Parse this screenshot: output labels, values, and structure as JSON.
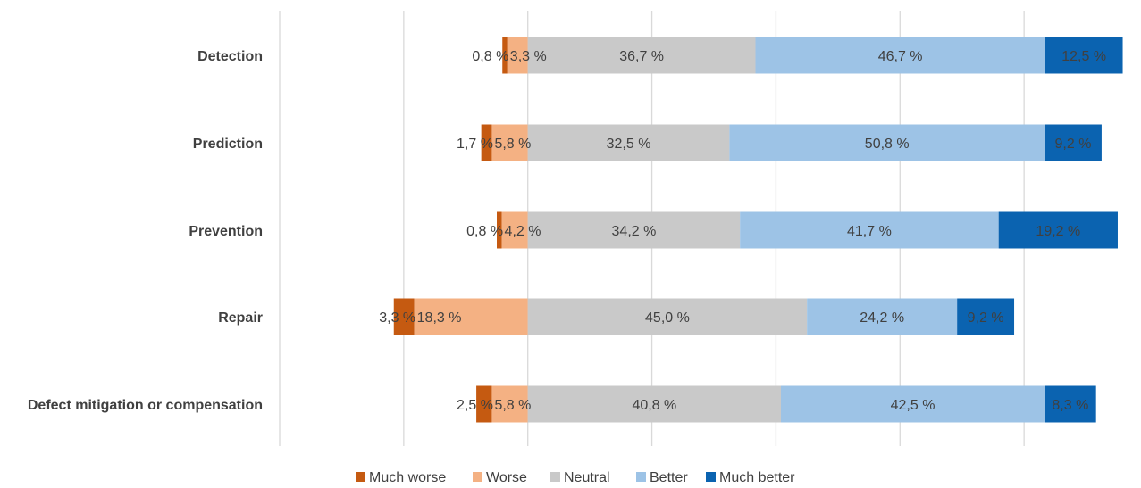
{
  "chart_data": {
    "type": "bar",
    "orientation": "horizontal",
    "stacked": "diverging",
    "categories": [
      "Detection",
      "Prediction",
      "Prevention",
      "Repair",
      "Defect mitigation or compensation"
    ],
    "series": [
      {
        "name": "Much worse",
        "color": "#C55A11",
        "values": [
          0.8,
          1.7,
          0.8,
          3.3,
          2.5
        ]
      },
      {
        "name": "Worse",
        "color": "#F4B183",
        "values": [
          3.3,
          5.8,
          4.2,
          18.3,
          5.8
        ]
      },
      {
        "name": "Neutral",
        "color": "#C9C9C9",
        "values": [
          36.7,
          32.5,
          34.2,
          45.0,
          40.8
        ]
      },
      {
        "name": "Better",
        "color": "#9DC3E6",
        "values": [
          46.7,
          50.8,
          41.7,
          24.2,
          42.5
        ]
      },
      {
        "name": "Much better",
        "color": "#0B63B0",
        "values": [
          12.5,
          9.2,
          19.2,
          9.2,
          8.3
        ]
      }
    ],
    "value_labels": [
      [
        "0,8 %",
        "3,3 %",
        "36,7 %",
        "46,7 %",
        "12,5 %"
      ],
      [
        "1,7 %",
        "5,8 %",
        "32,5 %",
        "50,8 %",
        "9,2 %"
      ],
      [
        "0,8 %",
        "4,2 %",
        "34,2 %",
        "41,7 %",
        "19,2 %"
      ],
      [
        "3,3 %",
        "18,3 %",
        "45,0 %",
        "24,2 %",
        "9,2 %"
      ],
      [
        "2,5 %",
        "5,8 %",
        "40,8 %",
        "42,5 %",
        "8,3 %"
      ]
    ],
    "xlim": [
      -40,
      100
    ],
    "grid": true,
    "axis_tick_labels_shown": false,
    "legend_position": "bottom",
    "title": "",
    "xlabel": "",
    "ylabel": ""
  }
}
